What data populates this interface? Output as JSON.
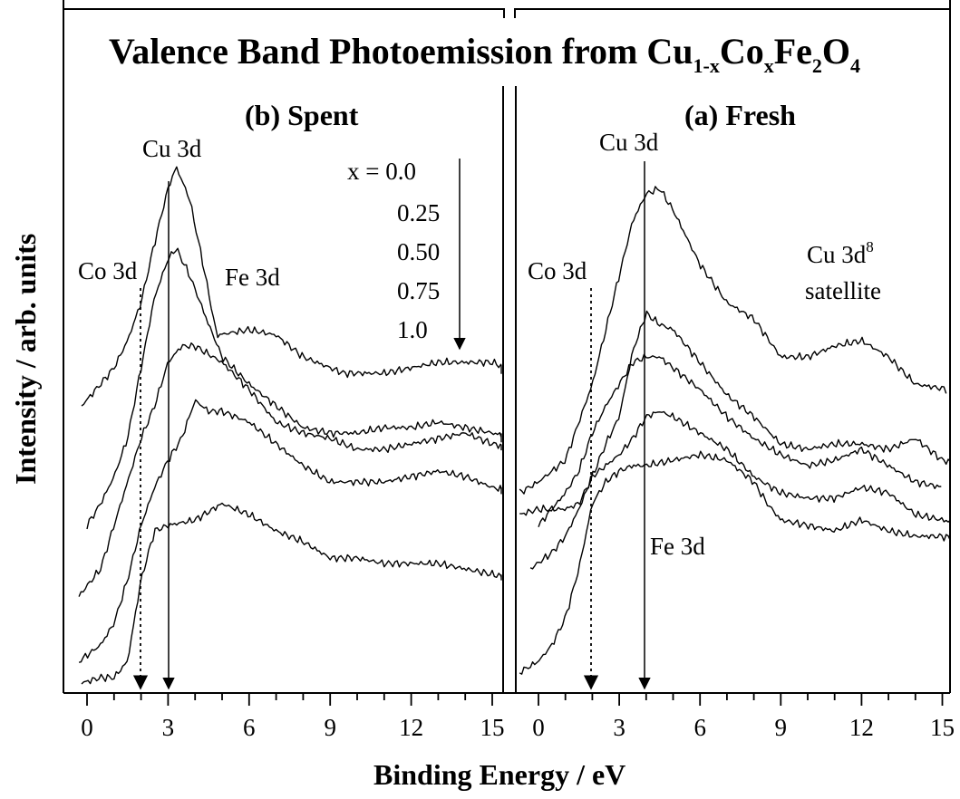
{
  "figure": {
    "title_main": "Valence Band Photoemission from Cu",
    "title_sub_1": "1-x",
    "title_co": "Co",
    "title_sub_x": "x",
    "title_fe": "Fe",
    "title_sub_2": "2",
    "title_o": "O",
    "title_sub_4": "4",
    "xlabel": "Binding Energy / eV",
    "ylabel": "Intensity / arb. units"
  },
  "chart_data": [
    {
      "type": "line",
      "title": "(b) Spent",
      "xlabel": "Binding Energy / eV",
      "ylabel": "Intensity / arb. units",
      "xlim": [
        -0.8,
        16
      ],
      "ylim": [
        0,
        1
      ],
      "xticks": [
        "0",
        "3",
        "6",
        "9",
        "12",
        "15"
      ],
      "series": [
        {
          "name": "x = 0.0",
          "x": [
            -0.2,
            0.5,
            1.0,
            1.5,
            2.0,
            2.5,
            3.0,
            3.3,
            3.8,
            4.3,
            4.8,
            6.0,
            7.0,
            8.0,
            9.5,
            10.5,
            11.0,
            12.0,
            13.0,
            14.0,
            15.0,
            16.0
          ],
          "y": [
            0.52,
            0.56,
            0.59,
            0.64,
            0.71,
            0.82,
            0.92,
            0.96,
            0.9,
            0.78,
            0.65,
            0.66,
            0.65,
            0.61,
            0.58,
            0.58,
            0.58,
            0.59,
            0.6,
            0.6,
            0.6,
            0.58
          ]
        },
        {
          "name": "x = 0.25",
          "x": [
            0.0,
            0.5,
            1.0,
            1.5,
            2.0,
            2.5,
            3.0,
            3.3,
            3.8,
            4.5,
            5.0,
            6.0,
            7.0,
            8.0,
            9.0,
            10.0,
            11.0,
            12.0,
            13.0,
            14.0,
            15.0,
            16.0
          ],
          "y": [
            0.3,
            0.34,
            0.39,
            0.46,
            0.59,
            0.72,
            0.79,
            0.81,
            0.76,
            0.67,
            0.61,
            0.56,
            0.52,
            0.48,
            0.47,
            0.47,
            0.48,
            0.48,
            0.49,
            0.48,
            0.47,
            0.46
          ]
        },
        {
          "name": "x = 0.50",
          "x": [
            -0.3,
            0.5,
            1.0,
            1.5,
            2.0,
            2.5,
            3.0,
            3.5,
            4.0,
            5.0,
            6.0,
            7.0,
            8.0,
            9.0,
            10.0,
            11.0,
            12.0,
            13.0,
            14.0,
            15.0,
            16.0
          ],
          "y": [
            0.17,
            0.22,
            0.3,
            0.38,
            0.46,
            0.52,
            0.6,
            0.63,
            0.63,
            0.6,
            0.55,
            0.49,
            0.47,
            0.46,
            0.44,
            0.44,
            0.45,
            0.46,
            0.47,
            0.45,
            0.44
          ]
        },
        {
          "name": "x = 0.75",
          "x": [
            -0.3,
            0.5,
            1.0,
            1.5,
            2.0,
            2.5,
            3.0,
            3.5,
            4.0,
            4.5,
            5.0,
            6.0,
            7.0,
            8.0,
            9.0,
            10.0,
            11.0,
            12.0,
            13.0,
            14.0,
            15.0,
            16.0
          ],
          "y": [
            0.05,
            0.08,
            0.12,
            0.2,
            0.3,
            0.37,
            0.42,
            0.46,
            0.53,
            0.51,
            0.51,
            0.49,
            0.45,
            0.41,
            0.38,
            0.38,
            0.38,
            0.39,
            0.4,
            0.39,
            0.37,
            0.36
          ]
        },
        {
          "name": "x = 1.0",
          "x": [
            -0.2,
            0.5,
            1.0,
            1.5,
            2.0,
            2.5,
            3.0,
            4.0,
            5.0,
            6.0,
            7.0,
            8.0,
            9.0,
            10.0,
            11.0,
            12.0,
            13.0,
            14.0,
            15.0,
            16.0
          ],
          "y": [
            0.01,
            0.02,
            0.02,
            0.05,
            0.2,
            0.29,
            0.3,
            0.31,
            0.34,
            0.32,
            0.29,
            0.27,
            0.24,
            0.24,
            0.23,
            0.23,
            0.23,
            0.22,
            0.21,
            0.2
          ]
        }
      ]
    },
    {
      "type": "line",
      "title": "(a) Fresh",
      "xlabel": "Binding Energy / eV",
      "ylabel": "Intensity / arb. units",
      "xlim": [
        -0.8,
        16
      ],
      "ylim": [
        0,
        1
      ],
      "xticks": [
        "0",
        "3",
        "6",
        "9",
        "12",
        "15"
      ],
      "series": [
        {
          "name": "x = 0.0",
          "x": [
            -0.7,
            0.0,
            1.0,
            2.0,
            2.5,
            3.0,
            3.5,
            4.0,
            4.5,
            5.0,
            6.0,
            7.0,
            8.0,
            9.0,
            10.0,
            11.0,
            12.0,
            13.0,
            14.0,
            15.2
          ],
          "y": [
            0.36,
            0.38,
            0.42,
            0.56,
            0.66,
            0.76,
            0.86,
            0.91,
            0.92,
            0.88,
            0.78,
            0.71,
            0.68,
            0.61,
            0.61,
            0.63,
            0.64,
            0.61,
            0.56,
            0.55
          ]
        },
        {
          "name": "x = 0.25",
          "x": [
            -0.3,
            0.5,
            1.0,
            1.5,
            2.0,
            2.5,
            3.0,
            3.5,
            4.0,
            4.5,
            5.0,
            6.0,
            7.0,
            8.0,
            9.0,
            10.0,
            11.0,
            12.0,
            13.0,
            14.0,
            15.0,
            16.0
          ],
          "y": [
            0.22,
            0.25,
            0.28,
            0.33,
            0.39,
            0.45,
            0.5,
            0.62,
            0.69,
            0.67,
            0.66,
            0.6,
            0.54,
            0.5,
            0.45,
            0.44,
            0.45,
            0.45,
            0.44,
            0.46,
            0.42,
            0.41
          ]
        },
        {
          "name": "x = 0.50",
          "x": [
            0.0,
            0.5,
            1.0,
            1.5,
            2.0,
            2.5,
            3.0,
            3.5,
            4.0,
            4.5,
            5.0,
            6.0,
            7.0,
            8.0,
            9.0,
            10.0,
            11.0,
            12.0,
            13.0,
            14.0,
            15.0
          ],
          "y": [
            0.3,
            0.33,
            0.36,
            0.4,
            0.47,
            0.52,
            0.56,
            0.6,
            0.61,
            0.61,
            0.59,
            0.55,
            0.5,
            0.46,
            0.43,
            0.41,
            0.42,
            0.44,
            0.41,
            0.38,
            0.37
          ]
        },
        {
          "name": "x = 0.75",
          "x": [
            -0.7,
            0.0,
            0.5,
            1.0,
            1.5,
            2.0,
            2.5,
            3.0,
            3.5,
            4.0,
            4.5,
            5.0,
            6.0,
            7.0,
            8.0,
            9.0,
            10.0,
            11.0,
            12.0,
            13.0,
            14.0,
            15.0,
            16.0
          ],
          "y": [
            0.32,
            0.33,
            0.33,
            0.33,
            0.34,
            0.39,
            0.41,
            0.43,
            0.46,
            0.5,
            0.51,
            0.5,
            0.47,
            0.44,
            0.39,
            0.36,
            0.35,
            0.35,
            0.37,
            0.36,
            0.32,
            0.31,
            0.3
          ]
        },
        {
          "name": "x = 1.0",
          "x": [
            -0.7,
            0.0,
            0.5,
            1.0,
            1.5,
            2.0,
            2.5,
            3.0,
            3.5,
            4.0,
            5.0,
            6.0,
            7.0,
            8.0,
            8.5,
            9.0,
            10.0,
            11.0,
            12.0,
            13.0,
            14.0,
            15.0,
            16.0
          ],
          "y": [
            0.03,
            0.05,
            0.08,
            0.13,
            0.22,
            0.34,
            0.38,
            0.4,
            0.41,
            0.41,
            0.42,
            0.43,
            0.42,
            0.38,
            0.34,
            0.31,
            0.3,
            0.29,
            0.31,
            0.29,
            0.28,
            0.28,
            0.27
          ]
        }
      ]
    }
  ],
  "annotations": {
    "spent": {
      "cu": "Cu 3d",
      "co": "Co 3d",
      "fe": "Fe 3d",
      "legend_x0": "x = 0.0",
      "legend_x25": "0.25",
      "legend_x50": "0.50",
      "legend_x75": "0.75",
      "legend_x1": "1.0"
    },
    "fresh": {
      "cu": "Cu 3d",
      "co": "Co 3d",
      "fe": "Fe 3d",
      "sat1": "Cu 3d",
      "sat_sup": "8",
      "sat2": "satellite"
    }
  }
}
